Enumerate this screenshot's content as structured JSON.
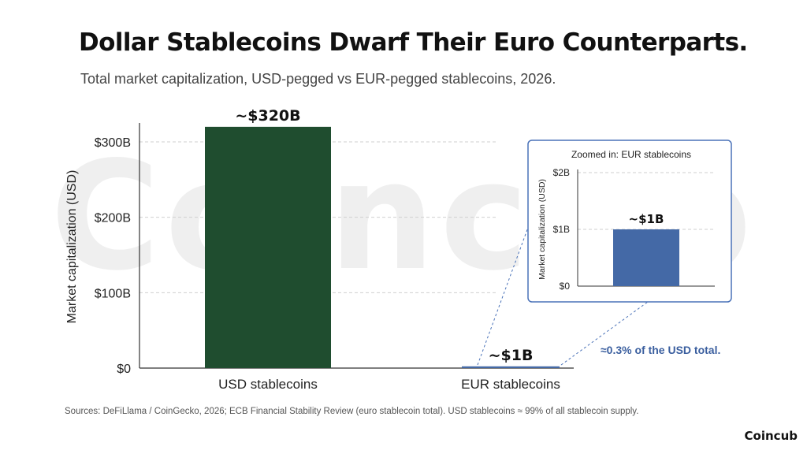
{
  "header": {
    "title": "Dollar Stablecoins Dwarf Their Euro Counterparts.",
    "subtitle": "Total market capitalization, USD-pegged vs EUR-pegged stablecoins, 2026."
  },
  "footer": {
    "sources": "Sources: DeFiLlama / CoinGecko, 2026; ECB Financial Stability Review (euro stablecoin total). USD stablecoins ≈ 99% of all stablecoin supply.",
    "brand": "Coincub"
  },
  "watermark": "Coincub",
  "colors": {
    "usd_bar": "#1f4d2f",
    "eur_bar": "#4469a6",
    "inset_border": "#4a72b8",
    "annotation": "#3b5f9f"
  },
  "chart_data": [
    {
      "type": "bar",
      "title": "",
      "ylabel": "Market capitalization (USD)",
      "categories": [
        "USD stablecoins",
        "EUR stablecoins"
      ],
      "values": [
        320,
        1
      ],
      "value_unit": "billion USD",
      "data_labels": [
        "~$320B",
        "~$1B"
      ],
      "ylim": [
        0,
        320
      ],
      "yticks": [
        0,
        100,
        200,
        300
      ],
      "ytick_labels": [
        "$0",
        "$100B",
        "$200B",
        "$300B"
      ],
      "grid": true,
      "annotation": "≈0.3% of the USD total."
    },
    {
      "type": "bar",
      "title": "Zoomed in: EUR stablecoins",
      "ylabel": "Market capitalization (USD)",
      "categories": [
        "EUR stablecoins"
      ],
      "values": [
        1
      ],
      "value_unit": "billion USD",
      "data_labels": [
        "~$1B"
      ],
      "ylim": [
        0,
        2
      ],
      "yticks": [
        0,
        1,
        2
      ],
      "ytick_labels": [
        "$0",
        "$1B",
        "$2B"
      ],
      "grid": true
    }
  ]
}
